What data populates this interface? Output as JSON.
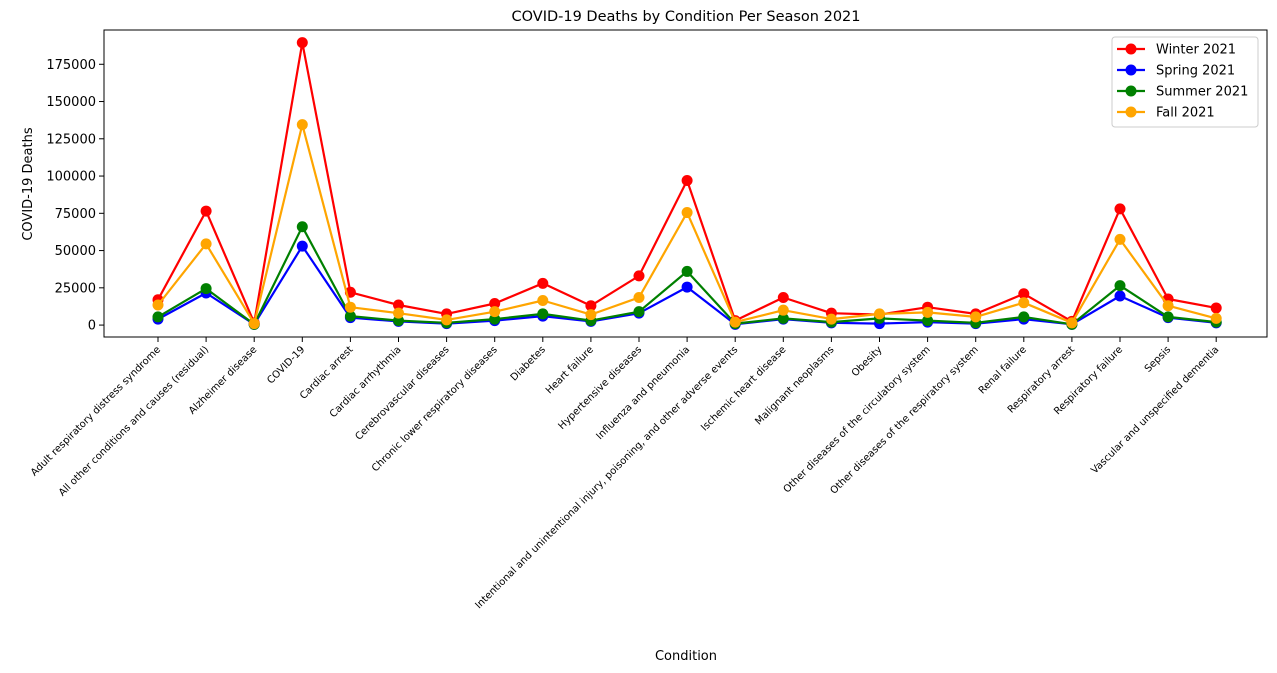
{
  "chart_data": {
    "type": "line",
    "title": "COVID-19 Deaths by Condition Per Season 2021",
    "xlabel": "Condition",
    "ylabel": "COVID-19 Deaths",
    "ylim": [
      -8000,
      198000
    ],
    "yticks": [
      0,
      25000,
      50000,
      75000,
      100000,
      125000,
      150000,
      175000
    ],
    "grid": false,
    "legend_position": "top-right",
    "categories": [
      "Adult respiratory distress syndrome",
      "All other conditions and causes (residual)",
      "Alzheimer disease",
      "COVID-19",
      "Cardiac arrest",
      "Cardiac arrhythmia",
      "Cerebrovascular diseases",
      "Chronic lower respiratory diseases",
      "Diabetes",
      "Heart failure",
      "Hypertensive diseases",
      "Influenza and pneumonia",
      "Intentional and unintentional injury, poisoning, and other adverse events",
      "Ischemic heart disease",
      "Malignant neoplasms",
      "Obesity",
      "Other diseases of the circulatory system",
      "Other diseases of the respiratory system",
      "Renal failure",
      "Respiratory arrest",
      "Respiratory failure",
      "Sepsis",
      "Vascular and unspecified dementia"
    ],
    "series": [
      {
        "name": "Winter 2021",
        "color": "#ff0000",
        "values": [
          17000,
          76500,
          1500,
          189500,
          22000,
          13500,
          7500,
          14500,
          28000,
          13000,
          33000,
          97000,
          3000,
          18500,
          8000,
          7000,
          12000,
          7500,
          21000,
          2500,
          78000,
          17500,
          11500
        ]
      },
      {
        "name": "Spring 2021",
        "color": "#0000ff",
        "values": [
          4000,
          21500,
          500,
          53000,
          5000,
          2500,
          1000,
          3000,
          6000,
          2500,
          8000,
          25500,
          500,
          4000,
          1500,
          1000,
          2000,
          1000,
          4000,
          500,
          19500,
          5000,
          1500
        ]
      },
      {
        "name": "Summer 2021",
        "color": "#008000",
        "values": [
          5500,
          24500,
          500,
          66000,
          6000,
          3000,
          1500,
          4000,
          7500,
          3000,
          9000,
          36000,
          1000,
          4500,
          2000,
          4500,
          3000,
          1500,
          5500,
          500,
          26500,
          5500,
          2000
        ]
      },
      {
        "name": "Fall 2021",
        "color": "#ffa500",
        "values": [
          13500,
          54500,
          1000,
          134500,
          12000,
          8000,
          3500,
          9000,
          16500,
          7000,
          18500,
          75500,
          2000,
          10000,
          4000,
          7500,
          8500,
          5500,
          15000,
          1500,
          57500,
          13000,
          4500
        ]
      }
    ]
  }
}
